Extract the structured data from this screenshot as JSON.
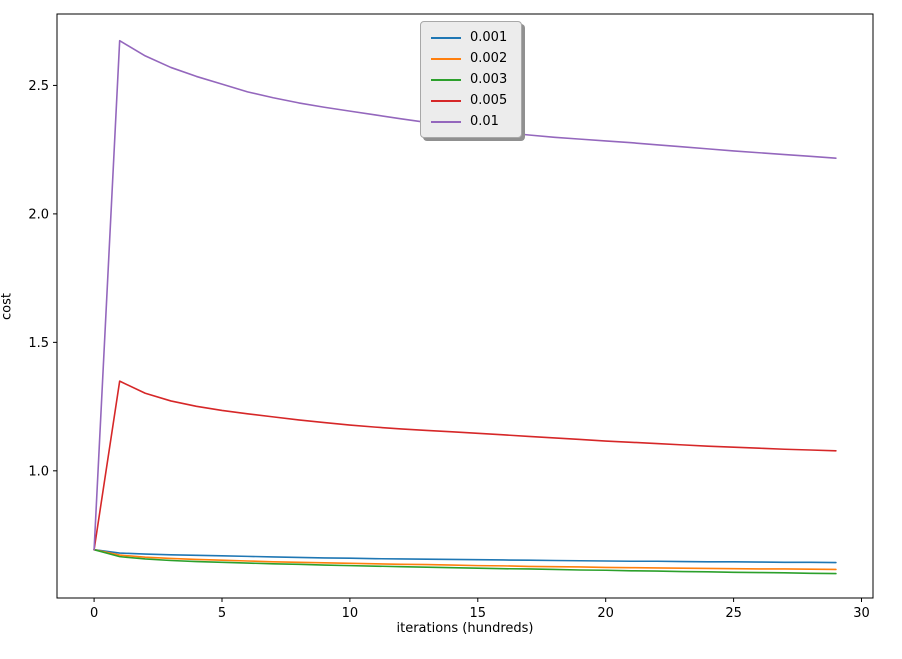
{
  "figure": {
    "background": "#ffffff",
    "spine_color": "#000000",
    "text_color": "#000000"
  },
  "legend": {
    "position": "upper center",
    "background": "#ececec",
    "border_color": "#a8a8a8"
  },
  "chart_data": {
    "type": "line",
    "title": "",
    "xlabel": "iterations (hundreds)",
    "ylabel": "cost",
    "grid": false,
    "legend_position": "upper center",
    "xlim": [
      -1.45,
      30.45
    ],
    "ylim": [
      0.505,
      2.778
    ],
    "xticks": [
      0,
      5,
      10,
      15,
      20,
      25,
      30
    ],
    "yticks": [
      "1.0",
      "1.5",
      "2.0",
      "2.5"
    ],
    "x": [
      0,
      1,
      2,
      3,
      4,
      5,
      6,
      7,
      8,
      9,
      10,
      11,
      12,
      13,
      14,
      15,
      16,
      17,
      18,
      19,
      20,
      21,
      22,
      23,
      24,
      25,
      26,
      27,
      28,
      29
    ],
    "series": [
      {
        "name": "0.001",
        "color": "#1f77b4",
        "values": [
          0.693,
          0.68,
          0.676,
          0.673,
          0.671,
          0.669,
          0.667,
          0.665,
          0.663,
          0.661,
          0.66,
          0.658,
          0.657,
          0.656,
          0.655,
          0.654,
          0.653,
          0.652,
          0.651,
          0.65,
          0.649,
          0.648,
          0.648,
          0.647,
          0.646,
          0.646,
          0.645,
          0.644,
          0.644,
          0.643
        ]
      },
      {
        "name": "0.002",
        "color": "#ff7f0e",
        "values": [
          0.693,
          0.672,
          0.664,
          0.659,
          0.655,
          0.652,
          0.649,
          0.646,
          0.644,
          0.642,
          0.64,
          0.638,
          0.636,
          0.635,
          0.633,
          0.631,
          0.63,
          0.628,
          0.627,
          0.626,
          0.624,
          0.623,
          0.622,
          0.621,
          0.62,
          0.619,
          0.618,
          0.618,
          0.617,
          0.616
        ]
      },
      {
        "name": "0.003",
        "color": "#2ca02c",
        "values": [
          0.693,
          0.666,
          0.657,
          0.651,
          0.647,
          0.644,
          0.641,
          0.638,
          0.636,
          0.633,
          0.631,
          0.629,
          0.627,
          0.625,
          0.623,
          0.621,
          0.619,
          0.618,
          0.616,
          0.614,
          0.613,
          0.611,
          0.61,
          0.608,
          0.607,
          0.605,
          0.604,
          0.603,
          0.601,
          0.6
        ]
      },
      {
        "name": "0.005",
        "color": "#d62728",
        "values": [
          0.693,
          1.349,
          1.302,
          1.272,
          1.251,
          1.235,
          1.222,
          1.21,
          1.198,
          1.188,
          1.178,
          1.17,
          1.163,
          1.157,
          1.152,
          1.146,
          1.14,
          1.134,
          1.128,
          1.122,
          1.116,
          1.111,
          1.106,
          1.101,
          1.096,
          1.092,
          1.088,
          1.084,
          1.081,
          1.078
        ]
      },
      {
        "name": "0.01",
        "color": "#9467bd",
        "values": [
          0.693,
          2.674,
          2.615,
          2.57,
          2.535,
          2.505,
          2.475,
          2.452,
          2.432,
          2.415,
          2.4,
          2.385,
          2.37,
          2.356,
          2.342,
          2.33,
          2.317,
          2.307,
          2.298,
          2.291,
          2.284,
          2.277,
          2.269,
          2.261,
          2.253,
          2.245,
          2.238,
          2.231,
          2.224,
          2.217
        ]
      }
    ]
  }
}
